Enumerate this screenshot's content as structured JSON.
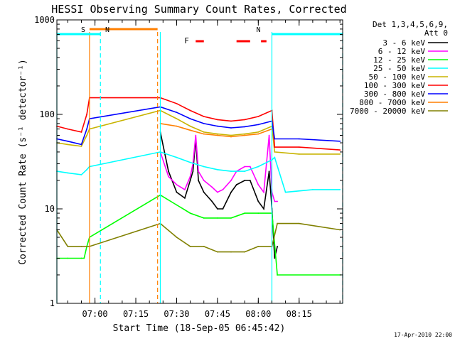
{
  "chart_data": {
    "type": "line",
    "title": "HESSI Observing Summary Count Rates, Corrected",
    "xlabel": "Start Time (18-Sep-05 06:45:42)",
    "ylabel": "Corrected Count Rate (s⁻¹ detector⁻¹)",
    "yscale": "log",
    "xlim": [
      "06:46",
      "08:31"
    ],
    "ylim": [
      1,
      1000
    ],
    "x_ticks": [
      "07:00",
      "07:15",
      "07:30",
      "07:45",
      "08:00",
      "08:15"
    ],
    "y_ticks": [
      "1",
      "10",
      "100",
      "1000"
    ],
    "timestamp": "17-Apr-2010 22:00",
    "legend_header": [
      "Det 1,3,4,5,6,9,",
      "Att 0"
    ],
    "legend_position": "right",
    "markers": [
      {
        "label": "S",
        "color": "#ff7f00",
        "start": "06:58",
        "end": "07:23"
      },
      {
        "label": "N",
        "color": "#00ffff",
        "start": "06:46",
        "end": "07:02"
      },
      {
        "label": "N",
        "color": "#00ffff",
        "start": "08:05",
        "end": "08:31"
      },
      {
        "label": "F",
        "color": "#ff0000",
        "segments": [
          [
            "07:37",
            "07:40"
          ],
          [
            "07:52",
            "07:57"
          ],
          [
            "08:01",
            "08:03"
          ]
        ]
      }
    ],
    "night_lines": [
      "06:46",
      "06:58",
      "07:02",
      "07:23",
      "07:24",
      "08:05",
      "08:31"
    ],
    "series": [
      {
        "name": "3 - 6 keV",
        "color": "#000000",
        "x": [
          "07:24",
          "07:27",
          "07:30",
          "07:33",
          "07:35",
          "07:36",
          "07:37",
          "07:38",
          "07:40",
          "07:43",
          "07:45",
          "07:47",
          "07:50",
          "07:52",
          "07:55",
          "07:57",
          "08:00",
          "08:02",
          "08:04",
          "08:05",
          "08:06",
          "08:07"
        ],
        "y": [
          65,
          25,
          15,
          13,
          20,
          25,
          55,
          20,
          15,
          12,
          10,
          10,
          15,
          18,
          20,
          20,
          12,
          10,
          25,
          10,
          3,
          4
        ]
      },
      {
        "name": "6 - 12 keV",
        "color": "#ff00ff",
        "x": [
          "07:24",
          "07:27",
          "07:30",
          "07:33",
          "07:35",
          "07:36",
          "07:37",
          "07:38",
          "07:40",
          "07:43",
          "07:45",
          "07:47",
          "07:50",
          "07:52",
          "07:55",
          "07:57",
          "08:00",
          "08:02",
          "08:04",
          "08:05",
          "08:06",
          "08:07"
        ],
        "y": [
          40,
          22,
          18,
          16,
          22,
          30,
          60,
          25,
          20,
          17,
          15,
          16,
          20,
          25,
          28,
          28,
          18,
          15,
          60,
          15,
          12,
          12
        ]
      },
      {
        "name": "12 - 25 keV",
        "color": "#00ff00",
        "x": [
          "06:46",
          "06:50",
          "06:55",
          "06:56",
          "06:57",
          "06:58",
          "07:24",
          "07:30",
          "07:35",
          "07:40",
          "07:45",
          "07:50",
          "07:55",
          "08:00",
          "08:05",
          "08:07",
          "08:30"
        ],
        "y": [
          3,
          3,
          3,
          3,
          4,
          5,
          14,
          11,
          9,
          8,
          8,
          8,
          9,
          9,
          9,
          2,
          2
        ]
      },
      {
        "name": "25 - 50 keV",
        "color": "#00ffff",
        "x": [
          "06:46",
          "06:50",
          "06:55",
          "06:57",
          "06:58",
          "07:24",
          "07:30",
          "07:35",
          "07:40",
          "07:45",
          "07:50",
          "07:55",
          "08:00",
          "08:05",
          "08:06",
          "08:10",
          "08:20",
          "08:30"
        ],
        "y": [
          25,
          24,
          23,
          26,
          28,
          40,
          35,
          31,
          28,
          26,
          25,
          25,
          28,
          33,
          35,
          15,
          16,
          16
        ]
      },
      {
        "name": "50 - 100 keV",
        "color": "#c8b400",
        "x": [
          "06:46",
          "06:50",
          "06:55",
          "06:57",
          "06:58",
          "07:24",
          "07:30",
          "07:35",
          "07:40",
          "07:45",
          "07:50",
          "07:55",
          "08:00",
          "08:05",
          "08:06",
          "08:15",
          "08:30"
        ],
        "y": [
          50,
          48,
          46,
          60,
          70,
          110,
          90,
          75,
          65,
          62,
          60,
          62,
          65,
          75,
          40,
          38,
          38
        ]
      },
      {
        "name": "100 - 300 keV",
        "color": "#ff0000",
        "x": [
          "06:46",
          "06:50",
          "06:55",
          "06:57",
          "06:58",
          "07:24",
          "07:30",
          "07:35",
          "07:40",
          "07:45",
          "07:50",
          "07:55",
          "08:00",
          "08:05",
          "08:06",
          "08:15",
          "08:30"
        ],
        "y": [
          75,
          70,
          65,
          100,
          150,
          150,
          130,
          110,
          95,
          88,
          85,
          88,
          95,
          110,
          45,
          45,
          42
        ]
      },
      {
        "name": "300 - 800 keV",
        "color": "#0000ff",
        "x": [
          "06:46",
          "06:50",
          "06:55",
          "06:57",
          "06:58",
          "07:24",
          "07:30",
          "07:35",
          "07:40",
          "07:45",
          "07:50",
          "07:55",
          "08:00",
          "08:05",
          "08:06",
          "08:15",
          "08:30"
        ],
        "y": [
          55,
          52,
          48,
          70,
          90,
          120,
          105,
          90,
          80,
          75,
          72,
          74,
          78,
          85,
          55,
          55,
          52
        ]
      },
      {
        "name": "800 - 7000 keV",
        "color": "#ff7f00",
        "x": [
          "07:24",
          "07:30",
          "07:35",
          "07:40",
          "07:45",
          "07:50",
          "07:55",
          "08:00",
          "08:05"
        ],
        "y": [
          80,
          75,
          68,
          62,
          60,
          58,
          60,
          62,
          70
        ]
      },
      {
        "name": "7000 - 20000 keV",
        "color": "#808000",
        "x": [
          "06:46",
          "06:50",
          "06:55",
          "06:58",
          "07:24",
          "07:30",
          "07:35",
          "07:40",
          "07:45",
          "07:50",
          "07:55",
          "08:00",
          "08:05",
          "08:07",
          "08:15",
          "08:30"
        ],
        "y": [
          6,
          4,
          4,
          4,
          7,
          5,
          4,
          4,
          3.5,
          3.5,
          3.5,
          4,
          4,
          7,
          7,
          6
        ]
      }
    ]
  }
}
